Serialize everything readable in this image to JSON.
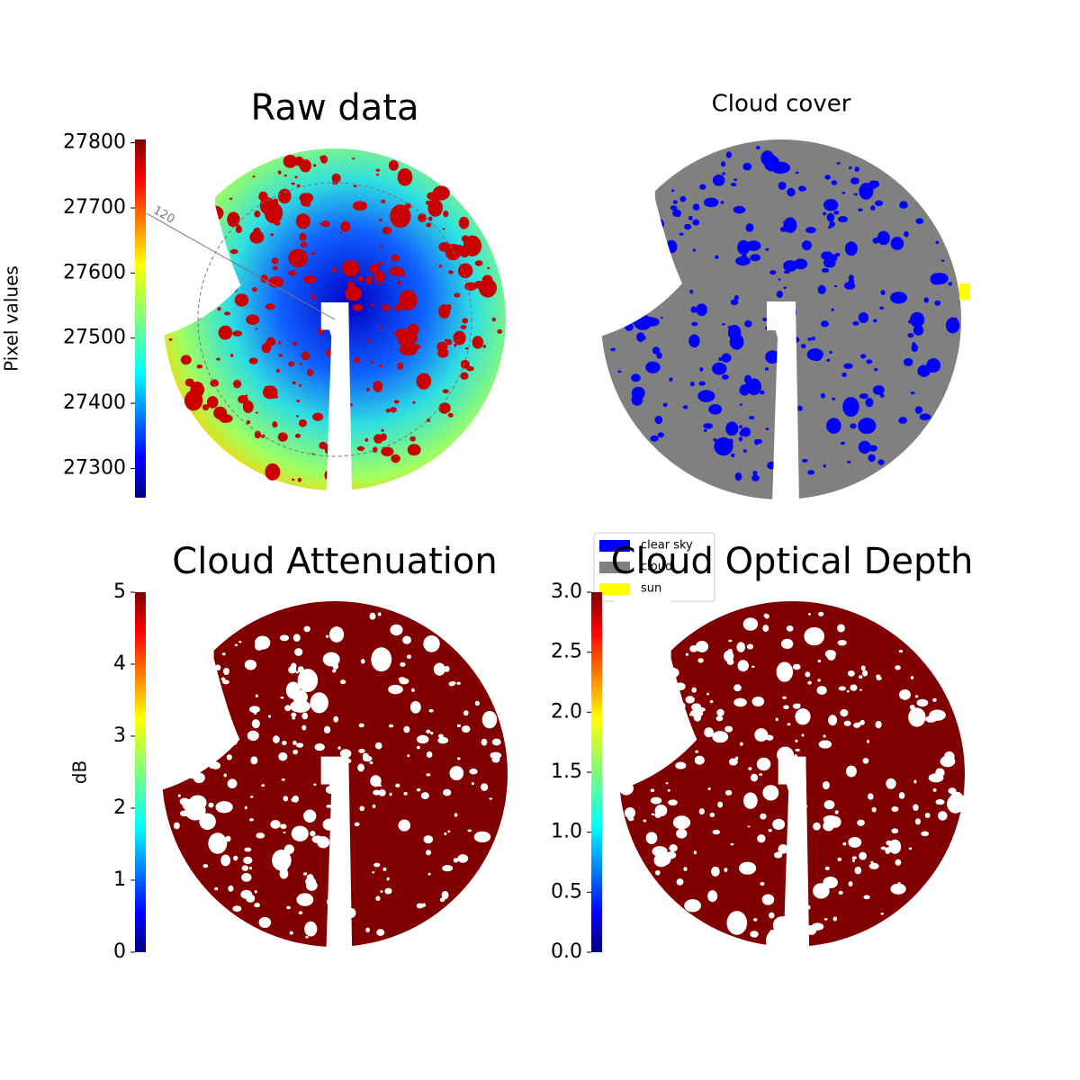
{
  "chart_data": [
    {
      "type": "image",
      "title": "Raw data",
      "colormap": "jet",
      "colorbar_label": "Pixel values",
      "ylim": [
        27255,
        27805
      ],
      "yticks": [
        27300,
        27400,
        27500,
        27600,
        27700,
        27800
      ],
      "annotations": [
        "120"
      ]
    },
    {
      "type": "image",
      "title": "Cloud cover",
      "series": [
        {
          "name": "clear sky",
          "color": "#0000ff"
        },
        {
          "name": "cloud",
          "color": "#808080"
        },
        {
          "name": "sun",
          "color": "#ffff00"
        }
      ]
    },
    {
      "type": "image",
      "title": "Cloud Attenuation",
      "colormap": "jet",
      "colorbar_label": "dB",
      "ylim": [
        0,
        5
      ],
      "yticks": [
        0,
        1,
        2,
        3,
        4,
        5
      ]
    },
    {
      "type": "image",
      "title": "Cloud Optical Depth",
      "colormap": "jet",
      "ylim": [
        0,
        3
      ],
      "yticks": [
        {
          "value": 0,
          "label": "0.0"
        },
        {
          "value": 0.5,
          "label": "0.5"
        },
        {
          "value": 1,
          "label": "1.0"
        },
        {
          "value": 1.5,
          "label": "1.5"
        },
        {
          "value": 2,
          "label": "2.0"
        },
        {
          "value": 2.5,
          "label": "2.5"
        },
        {
          "value": 3,
          "label": "3.0"
        }
      ]
    }
  ]
}
